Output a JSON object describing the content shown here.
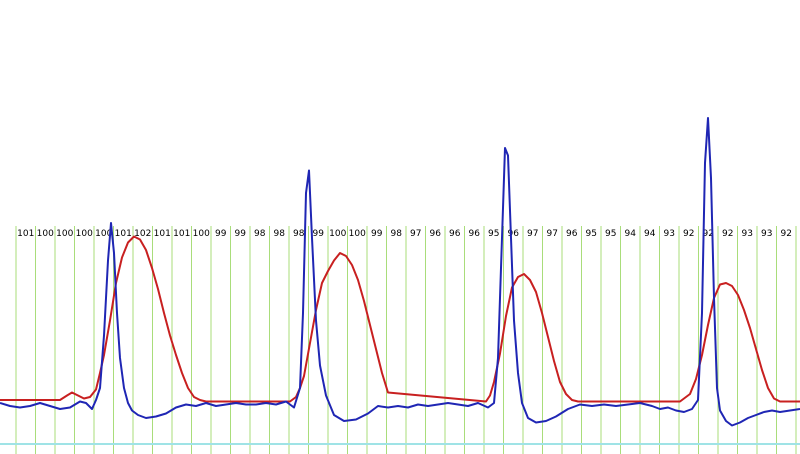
{
  "chart_data": {
    "type": "line",
    "title": "",
    "xlabel": "",
    "ylabel": "",
    "grid": true,
    "colors": {
      "background": "#ffffff",
      "gridline": "#a9dd7a",
      "baseline": "#9fe3e6",
      "series_red": "#c82020",
      "series_blue": "#1f26b4"
    },
    "beat_labels": [
      "101",
      "100",
      "100",
      "100",
      "100",
      "101",
      "102",
      "101",
      "101",
      "100",
      "99",
      "99",
      "98",
      "98",
      "98",
      "99",
      "100",
      "100",
      "99",
      "98",
      "97",
      "96",
      "96",
      "96",
      "95",
      "96",
      "97",
      "97",
      "96",
      "95",
      "95",
      "94",
      "94",
      "93",
      "92",
      "92",
      "92",
      "93",
      "93",
      "92",
      "92"
    ],
    "series": [
      {
        "color": "#c82020",
        "x": [
          0,
          60,
          67,
          72,
          78,
          84,
          90,
          96,
          100,
          104,
          110,
          116,
          122,
          128,
          134,
          140,
          146,
          152,
          158,
          164,
          170,
          176,
          182,
          188,
          194,
          200,
          206,
          290,
          296,
          300,
          304,
          310,
          316,
          322,
          328,
          334,
          340,
          346,
          352,
          358,
          364,
          370,
          376,
          382,
          388,
          486,
          490,
          494,
          500,
          506,
          512,
          518,
          524,
          530,
          536,
          542,
          548,
          554,
          560,
          566,
          572,
          578,
          584,
          680,
          690,
          696,
          702,
          708,
          714,
          720,
          726,
          732,
          738,
          744,
          750,
          756,
          762,
          768,
          774,
          780,
          800
        ],
        "y": [
          0.02,
          0.02,
          0.05,
          0.07,
          0.05,
          0.03,
          0.04,
          0.09,
          0.2,
          0.32,
          0.55,
          0.8,
          0.97,
          1.07,
          1.11,
          1.09,
          1.02,
          0.9,
          0.76,
          0.6,
          0.45,
          0.32,
          0.2,
          0.1,
          0.04,
          0.02,
          0.01,
          0.01,
          0.04,
          0.1,
          0.18,
          0.4,
          0.62,
          0.8,
          0.88,
          0.95,
          1.0,
          0.98,
          0.92,
          0.82,
          0.68,
          0.52,
          0.36,
          0.2,
          0.07,
          0.01,
          0.05,
          0.14,
          0.33,
          0.58,
          0.77,
          0.84,
          0.86,
          0.82,
          0.74,
          0.6,
          0.44,
          0.28,
          0.14,
          0.06,
          0.02,
          0.01,
          0.01,
          0.01,
          0.06,
          0.16,
          0.32,
          0.52,
          0.7,
          0.79,
          0.8,
          0.78,
          0.72,
          0.62,
          0.5,
          0.36,
          0.22,
          0.1,
          0.03,
          0.01,
          0.01
        ]
      },
      {
        "color": "#1f26b4",
        "x": [
          0,
          10,
          20,
          30,
          40,
          50,
          60,
          70,
          80,
          86,
          92,
          96,
          100,
          104,
          108,
          111,
          114,
          117,
          120,
          124,
          128,
          132,
          138,
          146,
          156,
          166,
          176,
          186,
          196,
          206,
          216,
          226,
          236,
          246,
          256,
          266,
          276,
          286,
          294,
          300,
          303,
          306,
          309,
          312,
          316,
          320,
          326,
          334,
          344,
          356,
          368,
          378,
          388,
          398,
          408,
          418,
          428,
          438,
          448,
          458,
          468,
          478,
          488,
          494,
          498,
          502,
          505,
          508,
          511,
          514,
          518,
          522,
          528,
          536,
          546,
          556,
          568,
          580,
          592,
          604,
          616,
          628,
          640,
          652,
          660,
          668,
          676,
          684,
          692,
          698,
          702,
          705,
          708,
          711,
          714,
          717,
          720,
          726,
          732,
          740,
          748,
          756,
          764,
          772,
          780,
          790,
          800
        ],
        "y": [
          0.0,
          -0.02,
          -0.03,
          -0.02,
          0.0,
          -0.02,
          -0.04,
          -0.03,
          0.01,
          0.0,
          -0.04,
          0.02,
          0.1,
          0.45,
          0.95,
          1.2,
          1.0,
          0.6,
          0.3,
          0.1,
          0.0,
          -0.05,
          -0.08,
          -0.1,
          -0.09,
          -0.07,
          -0.03,
          -0.01,
          -0.02,
          0.0,
          -0.02,
          -0.01,
          0.0,
          -0.01,
          -0.01,
          0.0,
          -0.01,
          0.01,
          -0.03,
          0.1,
          0.6,
          1.4,
          1.55,
          1.1,
          0.55,
          0.25,
          0.05,
          -0.08,
          -0.12,
          -0.11,
          -0.07,
          -0.02,
          -0.03,
          -0.02,
          -0.03,
          -0.01,
          -0.02,
          -0.01,
          0.0,
          -0.01,
          -0.02,
          0.0,
          -0.03,
          0.0,
          0.3,
          1.1,
          1.7,
          1.65,
          1.1,
          0.55,
          0.2,
          0.0,
          -0.1,
          -0.13,
          -0.12,
          -0.09,
          -0.04,
          -0.01,
          -0.02,
          -0.01,
          -0.02,
          -0.01,
          0.0,
          -0.02,
          -0.04,
          -0.03,
          -0.05,
          -0.06,
          -0.04,
          0.02,
          0.6,
          1.6,
          1.9,
          1.5,
          0.7,
          0.1,
          -0.05,
          -0.12,
          -0.15,
          -0.13,
          -0.1,
          -0.08,
          -0.06,
          -0.05,
          -0.06,
          -0.05,
          -0.04
        ]
      }
    ]
  }
}
